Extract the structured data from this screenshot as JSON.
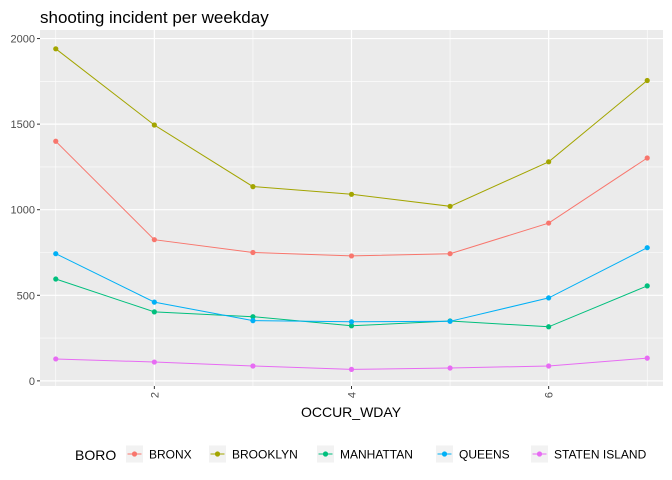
{
  "chart_data": {
    "type": "line",
    "title": "shooting incident per weekday",
    "xlabel": "OCCUR_WDAY",
    "ylabel": "",
    "x": [
      1,
      2,
      3,
      4,
      5,
      6,
      7
    ],
    "xlim": [
      0.84,
      7.16
    ],
    "ylim": [
      -30,
      2050
    ],
    "x_ticks": [
      2,
      4,
      6
    ],
    "y_ticks": [
      0,
      500,
      1000,
      1500,
      2000
    ],
    "grid": true,
    "legend_title": "BORO",
    "legend_position": "bottom",
    "series": [
      {
        "name": "BRONX",
        "color": "#F8766D",
        "values": [
          1400,
          825,
          750,
          730,
          743,
          922,
          1302
        ]
      },
      {
        "name": "BROOKLYN",
        "color": "#A3A500",
        "values": [
          1940,
          1495,
          1135,
          1090,
          1020,
          1280,
          1755
        ]
      },
      {
        "name": "MANHATTAN",
        "color": "#00BF7D",
        "values": [
          595,
          403,
          375,
          322,
          350,
          316,
          555
        ]
      },
      {
        "name": "QUEENS",
        "color": "#00B0F6",
        "values": [
          743,
          460,
          352,
          345,
          348,
          485,
          778
        ]
      },
      {
        "name": "STATEN ISLAND",
        "color": "#E76BF3",
        "values": [
          128,
          110,
          87,
          67,
          75,
          87,
          133
        ]
      }
    ]
  }
}
